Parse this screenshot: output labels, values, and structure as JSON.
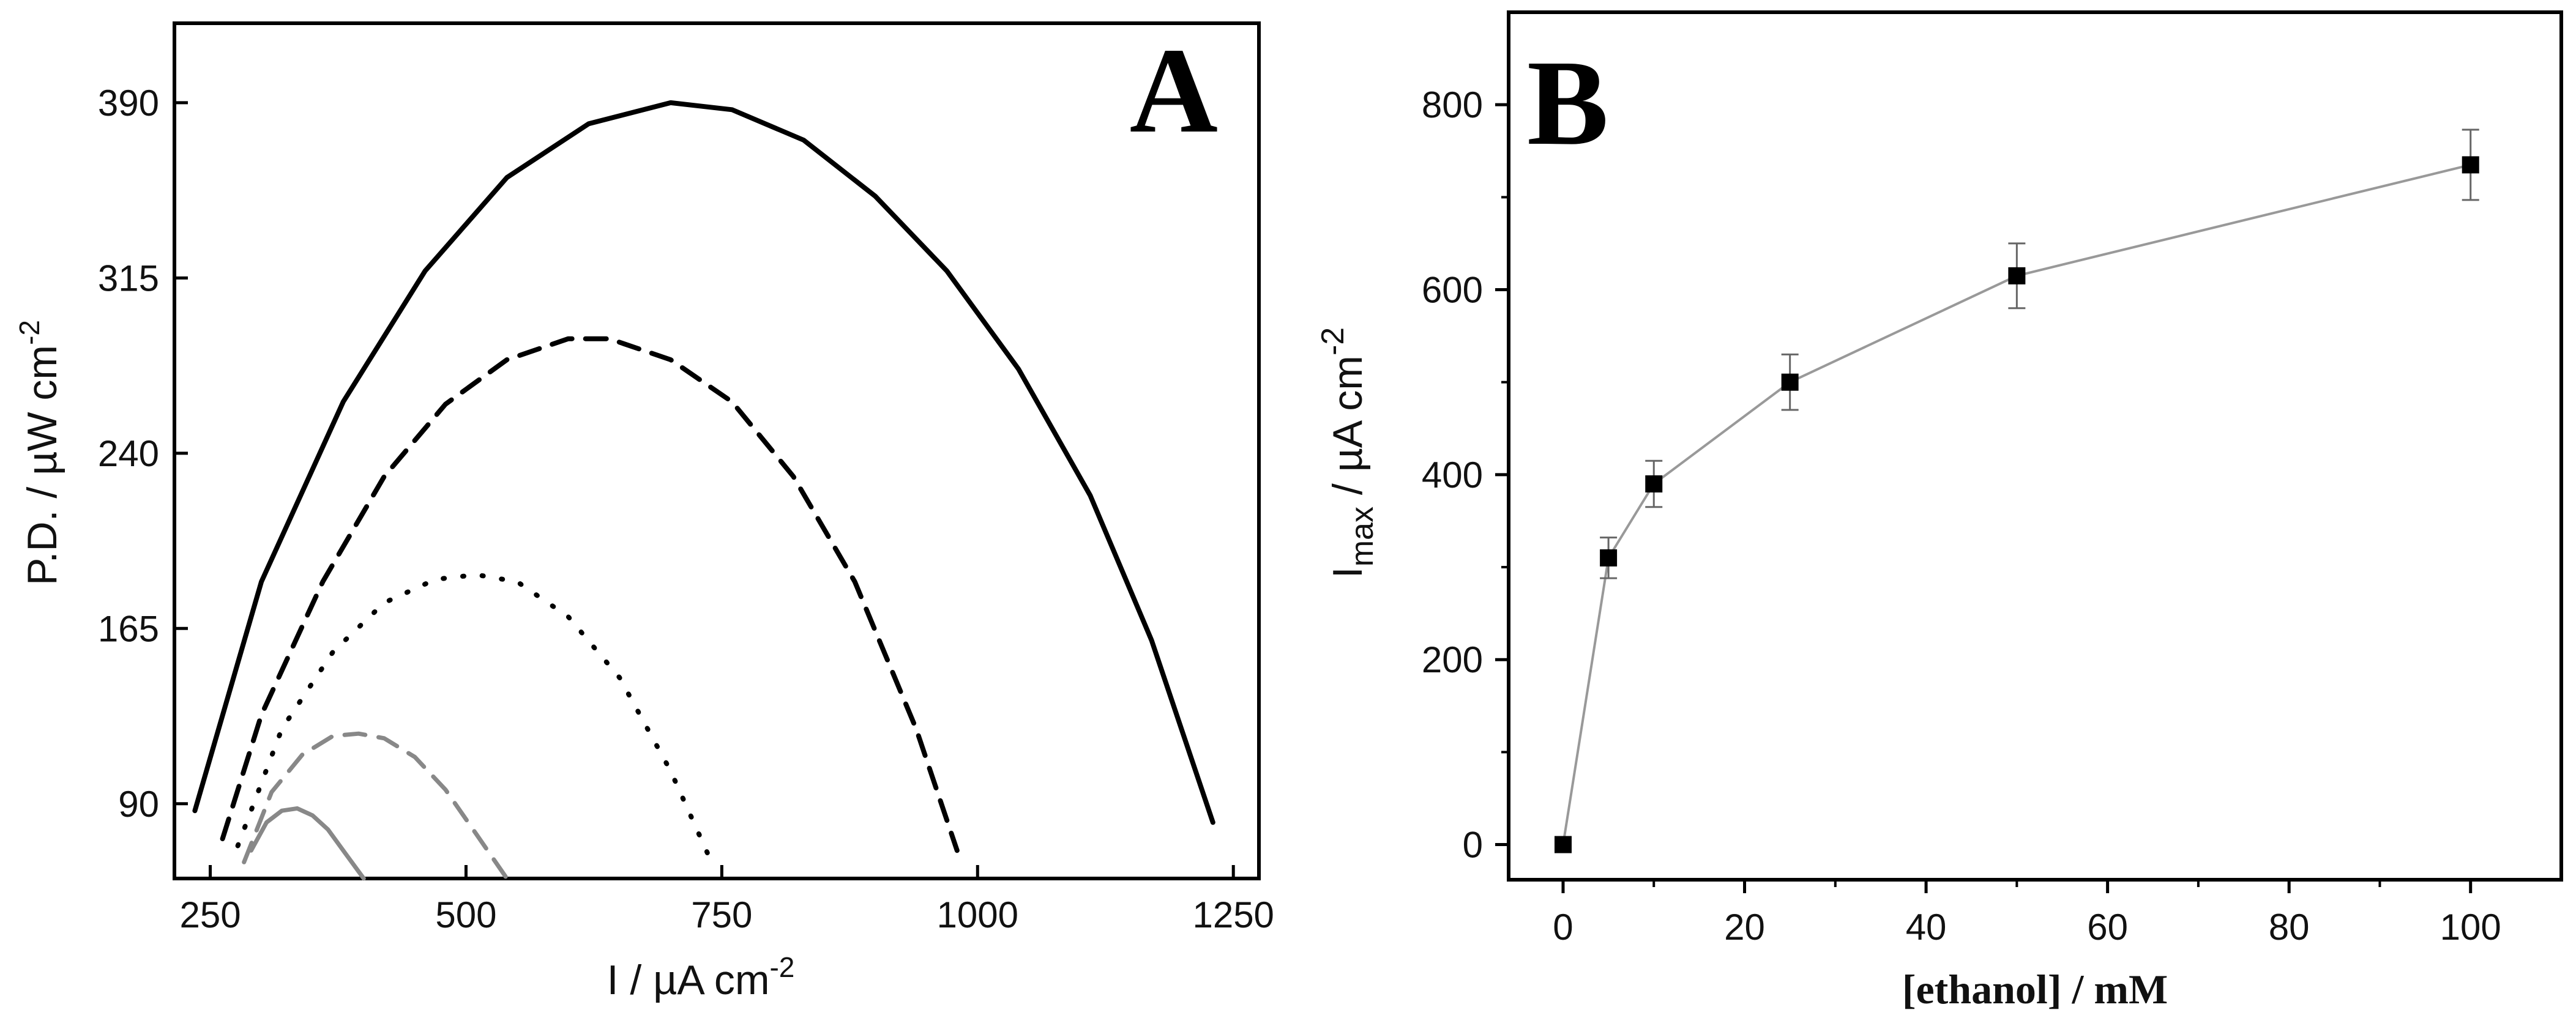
{
  "chart_data": [
    {
      "panel": "A",
      "type": "line",
      "panel_label": "A",
      "xlabel": "I / µA cm",
      "xlabel_sup": "-2",
      "ylabel": "P.D. / µW cm",
      "ylabel_sup": "-2",
      "xlim": [
        215,
        1275
      ],
      "ylim": [
        58,
        424
      ],
      "xticks": [
        250,
        500,
        750,
        1000,
        1250
      ],
      "yticks": [
        90,
        165,
        240,
        315,
        390
      ],
      "series": [
        {
          "style": "solid",
          "color": "#000000",
          "x": [
            235,
            300,
            380,
            460,
            540,
            620,
            700,
            760,
            830,
            900,
            970,
            1040,
            1110,
            1170,
            1230
          ],
          "y": [
            87,
            185,
            262,
            318,
            358,
            381,
            390,
            387,
            374,
            350,
            318,
            276,
            222,
            160,
            82
          ]
        },
        {
          "style": "dashed",
          "color": "#000000",
          "x": [
            262,
            300,
            360,
            420,
            480,
            540,
            600,
            640,
            700,
            760,
            820,
            880,
            940,
            980
          ],
          "y": [
            75,
            128,
            185,
            230,
            261,
            280,
            289,
            289,
            280,
            262,
            230,
            185,
            122,
            70
          ]
        },
        {
          "style": "dotted",
          "color": "#000000",
          "x": [
            277,
            320,
            370,
            420,
            470,
            510,
            550,
            600,
            650,
            700,
            740
          ],
          "y": [
            72,
            122,
            155,
            176,
            186,
            188,
            185,
            170,
            144,
            104,
            65
          ]
        },
        {
          "style": "dashed",
          "color": "#888888",
          "x": [
            283,
            310,
            340,
            370,
            395,
            420,
            450,
            480,
            510,
            540
          ],
          "y": [
            65,
            95,
            111,
            119,
            120,
            118,
            110,
            96,
            77,
            58
          ]
        },
        {
          "style": "solid",
          "color": "#888888",
          "x": [
            290,
            305,
            320,
            335,
            350,
            365,
            380,
            400
          ],
          "y": [
            70,
            82,
            87,
            88,
            85,
            79,
            70,
            58
          ]
        }
      ]
    },
    {
      "panel": "B",
      "type": "scatter",
      "panel_label": "B",
      "xlabel": "[ethanol] / mM",
      "ylabel_main": "I",
      "ylabel_sub": "max",
      "ylabel_rest": " / µA cm",
      "ylabel_sup": "-2",
      "xlim": [
        -6,
        110
      ],
      "ylim": [
        -38,
        900
      ],
      "xticks": [
        0,
        20,
        40,
        60,
        80,
        100
      ],
      "yticks": [
        0,
        200,
        400,
        600,
        800
      ],
      "x": [
        0,
        5,
        10,
        25,
        50,
        100
      ],
      "y": [
        0,
        310,
        390,
        500,
        615,
        735
      ],
      "error": [
        0,
        22,
        25,
        30,
        35,
        38
      ],
      "line_color": "#999999",
      "marker_color": "#000000"
    }
  ]
}
